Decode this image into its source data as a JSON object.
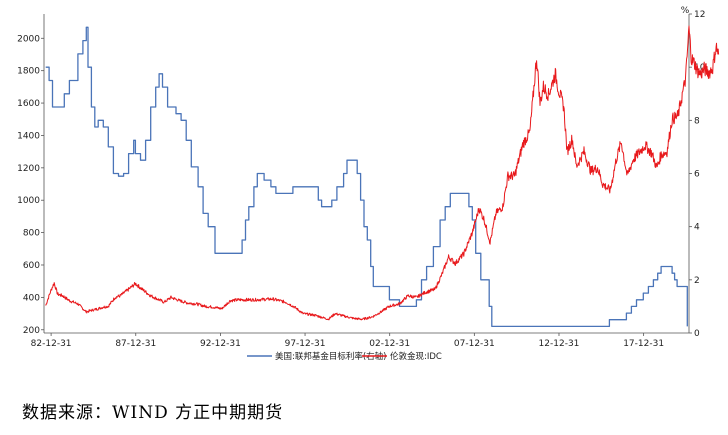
{
  "source_note": "数据来源：WIND  方正中期期货",
  "chart_data": {
    "type": "line",
    "x_tick_labels": [
      "82-12-31",
      "87-12-31",
      "92-12-31",
      "97-12-31",
      "02-12-31",
      "07-12-31",
      "12-12-31",
      "17-12-31"
    ],
    "x_ticks_year": [
      1982.92,
      1987.92,
      1992.92,
      1997.92,
      2002.92,
      2007.92,
      2012.92,
      2017.92
    ],
    "x_range": [
      1982.5,
      2020.6
    ],
    "y_left": {
      "ticks": [
        "200",
        "400",
        "600",
        "800",
        "1000",
        "1200",
        "1400",
        "1600",
        "1800",
        "2000"
      ],
      "range": [
        180,
        2150
      ]
    },
    "y_right": {
      "ticks": [
        "0",
        "2",
        "4",
        "6",
        "8",
        "10",
        "12"
      ],
      "range": [
        0,
        12
      ],
      "unit": "%"
    },
    "legend_position": "bottom",
    "series": [
      {
        "name": "美国:联邦基金目标利率(右轴)",
        "axis": "right",
        "color": "#4a74b8",
        "step": true,
        "points": [
          [
            1982.6,
            10.0
          ],
          [
            1982.8,
            9.5
          ],
          [
            1983.0,
            8.5
          ],
          [
            1983.5,
            8.5
          ],
          [
            1983.7,
            9.0
          ],
          [
            1984.0,
            9.5
          ],
          [
            1984.2,
            9.5
          ],
          [
            1984.5,
            10.5
          ],
          [
            1984.8,
            11.0
          ],
          [
            1985.0,
            11.5
          ],
          [
            1985.1,
            10.0
          ],
          [
            1985.3,
            8.5
          ],
          [
            1985.5,
            7.75
          ],
          [
            1985.7,
            8.0
          ],
          [
            1986.0,
            7.75
          ],
          [
            1986.3,
            7.0
          ],
          [
            1986.6,
            6.0
          ],
          [
            1986.9,
            5.9
          ],
          [
            1987.2,
            6.0
          ],
          [
            1987.5,
            6.75
          ],
          [
            1987.8,
            7.25
          ],
          [
            1987.9,
            6.75
          ],
          [
            1988.2,
            6.5
          ],
          [
            1988.5,
            7.25
          ],
          [
            1988.8,
            8.5
          ],
          [
            1989.1,
            9.25
          ],
          [
            1989.3,
            9.75
          ],
          [
            1989.5,
            9.25
          ],
          [
            1989.8,
            8.5
          ],
          [
            1990.3,
            8.25
          ],
          [
            1990.6,
            8.0
          ],
          [
            1990.9,
            7.25
          ],
          [
            1991.2,
            6.25
          ],
          [
            1991.6,
            5.5
          ],
          [
            1991.9,
            4.5
          ],
          [
            1992.2,
            4.0
          ],
          [
            1992.6,
            3.0
          ],
          [
            1993.5,
            3.0
          ],
          [
            1994.0,
            3.0
          ],
          [
            1994.2,
            3.5
          ],
          [
            1994.4,
            4.25
          ],
          [
            1994.6,
            4.75
          ],
          [
            1994.9,
            5.5
          ],
          [
            1995.1,
            6.0
          ],
          [
            1995.5,
            5.75
          ],
          [
            1995.9,
            5.5
          ],
          [
            1996.2,
            5.25
          ],
          [
            1997.2,
            5.5
          ],
          [
            1998.7,
            5.0
          ],
          [
            1998.9,
            4.75
          ],
          [
            1999.5,
            5.0
          ],
          [
            1999.8,
            5.5
          ],
          [
            2000.2,
            6.0
          ],
          [
            2000.4,
            6.5
          ],
          [
            2001.0,
            6.0
          ],
          [
            2001.2,
            5.0
          ],
          [
            2001.4,
            4.0
          ],
          [
            2001.6,
            3.5
          ],
          [
            2001.8,
            2.5
          ],
          [
            2001.95,
            1.75
          ],
          [
            2002.9,
            1.25
          ],
          [
            2003.5,
            1.0
          ],
          [
            2004.5,
            1.25
          ],
          [
            2004.8,
            2.0
          ],
          [
            2005.1,
            2.5
          ],
          [
            2005.5,
            3.25
          ],
          [
            2005.9,
            4.25
          ],
          [
            2006.2,
            4.75
          ],
          [
            2006.5,
            5.25
          ],
          [
            2007.6,
            4.75
          ],
          [
            2007.8,
            4.25
          ],
          [
            2008.0,
            3.0
          ],
          [
            2008.3,
            2.0
          ],
          [
            2008.8,
            1.0
          ],
          [
            2008.95,
            0.25
          ],
          [
            2015.9,
            0.5
          ],
          [
            2016.9,
            0.75
          ],
          [
            2017.2,
            1.0
          ],
          [
            2017.5,
            1.25
          ],
          [
            2017.9,
            1.5
          ],
          [
            2018.2,
            1.75
          ],
          [
            2018.5,
            2.0
          ],
          [
            2018.75,
            2.25
          ],
          [
            2018.95,
            2.5
          ],
          [
            2019.6,
            2.25
          ],
          [
            2019.75,
            2.0
          ],
          [
            2019.9,
            1.75
          ],
          [
            2020.5,
            0.25
          ]
        ]
      },
      {
        "name": "伦敦金现:IDC",
        "axis": "left",
        "color": "#e8191c",
        "step": false,
        "points": [
          [
            1982.6,
            350
          ],
          [
            1982.9,
            440
          ],
          [
            1983.1,
            490
          ],
          [
            1983.3,
            420
          ],
          [
            1983.6,
            410
          ],
          [
            1984.0,
            380
          ],
          [
            1984.5,
            360
          ],
          [
            1985.0,
            310
          ],
          [
            1985.3,
            320
          ],
          [
            1985.7,
            330
          ],
          [
            1986.0,
            340
          ],
          [
            1986.3,
            345
          ],
          [
            1986.7,
            400
          ],
          [
            1987.0,
            410
          ],
          [
            1987.5,
            450
          ],
          [
            1987.9,
            485
          ],
          [
            1988.3,
            450
          ],
          [
            1988.8,
            410
          ],
          [
            1989.2,
            390
          ],
          [
            1989.6,
            370
          ],
          [
            1990.0,
            400
          ],
          [
            1990.5,
            380
          ],
          [
            1991.0,
            365
          ],
          [
            1991.5,
            360
          ],
          [
            1992.0,
            345
          ],
          [
            1992.5,
            340
          ],
          [
            1993.0,
            330
          ],
          [
            1993.5,
            380
          ],
          [
            1994.0,
            385
          ],
          [
            1995.0,
            385
          ],
          [
            1996.0,
            390
          ],
          [
            1996.8,
            370
          ],
          [
            1997.3,
            340
          ],
          [
            1997.8,
            300
          ],
          [
            1998.5,
            290
          ],
          [
            1999.3,
            265
          ],
          [
            1999.7,
            300
          ],
          [
            2000.2,
            285
          ],
          [
            2000.8,
            270
          ],
          [
            2001.3,
            265
          ],
          [
            2001.9,
            280
          ],
          [
            2002.4,
            310
          ],
          [
            2002.9,
            345
          ],
          [
            2003.5,
            360
          ],
          [
            2004.0,
            410
          ],
          [
            2004.5,
            400
          ],
          [
            2005.0,
            430
          ],
          [
            2005.6,
            450
          ],
          [
            2006.0,
            540
          ],
          [
            2006.4,
            650
          ],
          [
            2006.8,
            610
          ],
          [
            2007.3,
            670
          ],
          [
            2007.8,
            800
          ],
          [
            2008.2,
            950
          ],
          [
            2008.5,
            880
          ],
          [
            2008.85,
            740
          ],
          [
            2009.2,
            920
          ],
          [
            2009.6,
            960
          ],
          [
            2009.9,
            1150
          ],
          [
            2010.3,
            1150
          ],
          [
            2010.8,
            1350
          ],
          [
            2011.2,
            1420
          ],
          [
            2011.6,
            1880
          ],
          [
            2011.8,
            1600
          ],
          [
            2012.0,
            1700
          ],
          [
            2012.3,
            1650
          ],
          [
            2012.7,
            1780
          ],
          [
            2012.9,
            1680
          ],
          [
            2013.2,
            1580
          ],
          [
            2013.4,
            1300
          ],
          [
            2013.7,
            1380
          ],
          [
            2013.95,
            1210
          ],
          [
            2014.4,
            1300
          ],
          [
            2014.8,
            1180
          ],
          [
            2015.2,
            1200
          ],
          [
            2015.5,
            1100
          ],
          [
            2015.95,
            1060
          ],
          [
            2016.3,
            1250
          ],
          [
            2016.6,
            1360
          ],
          [
            2016.95,
            1150
          ],
          [
            2017.3,
            1250
          ],
          [
            2017.7,
            1300
          ],
          [
            2018.0,
            1340
          ],
          [
            2018.4,
            1290
          ],
          [
            2018.7,
            1200
          ],
          [
            2018.95,
            1280
          ],
          [
            2019.3,
            1300
          ],
          [
            2019.6,
            1500
          ],
          [
            2019.95,
            1520
          ],
          [
            2020.2,
            1650
          ],
          [
            2020.4,
            1750
          ],
          [
            2020.6,
            2060
          ],
          [
            2020.75,
            1870
          ],
          [
            2020.9,
            1850
          ],
          [
            2021.1,
            1800
          ],
          [
            2021.3,
            1780
          ],
          [
            2021.5,
            1810
          ],
          [
            2021.8,
            1790
          ],
          [
            2022.0,
            1820
          ],
          [
            2022.2,
            1950
          ],
          [
            2022.35,
            1900
          ]
        ]
      }
    ]
  }
}
